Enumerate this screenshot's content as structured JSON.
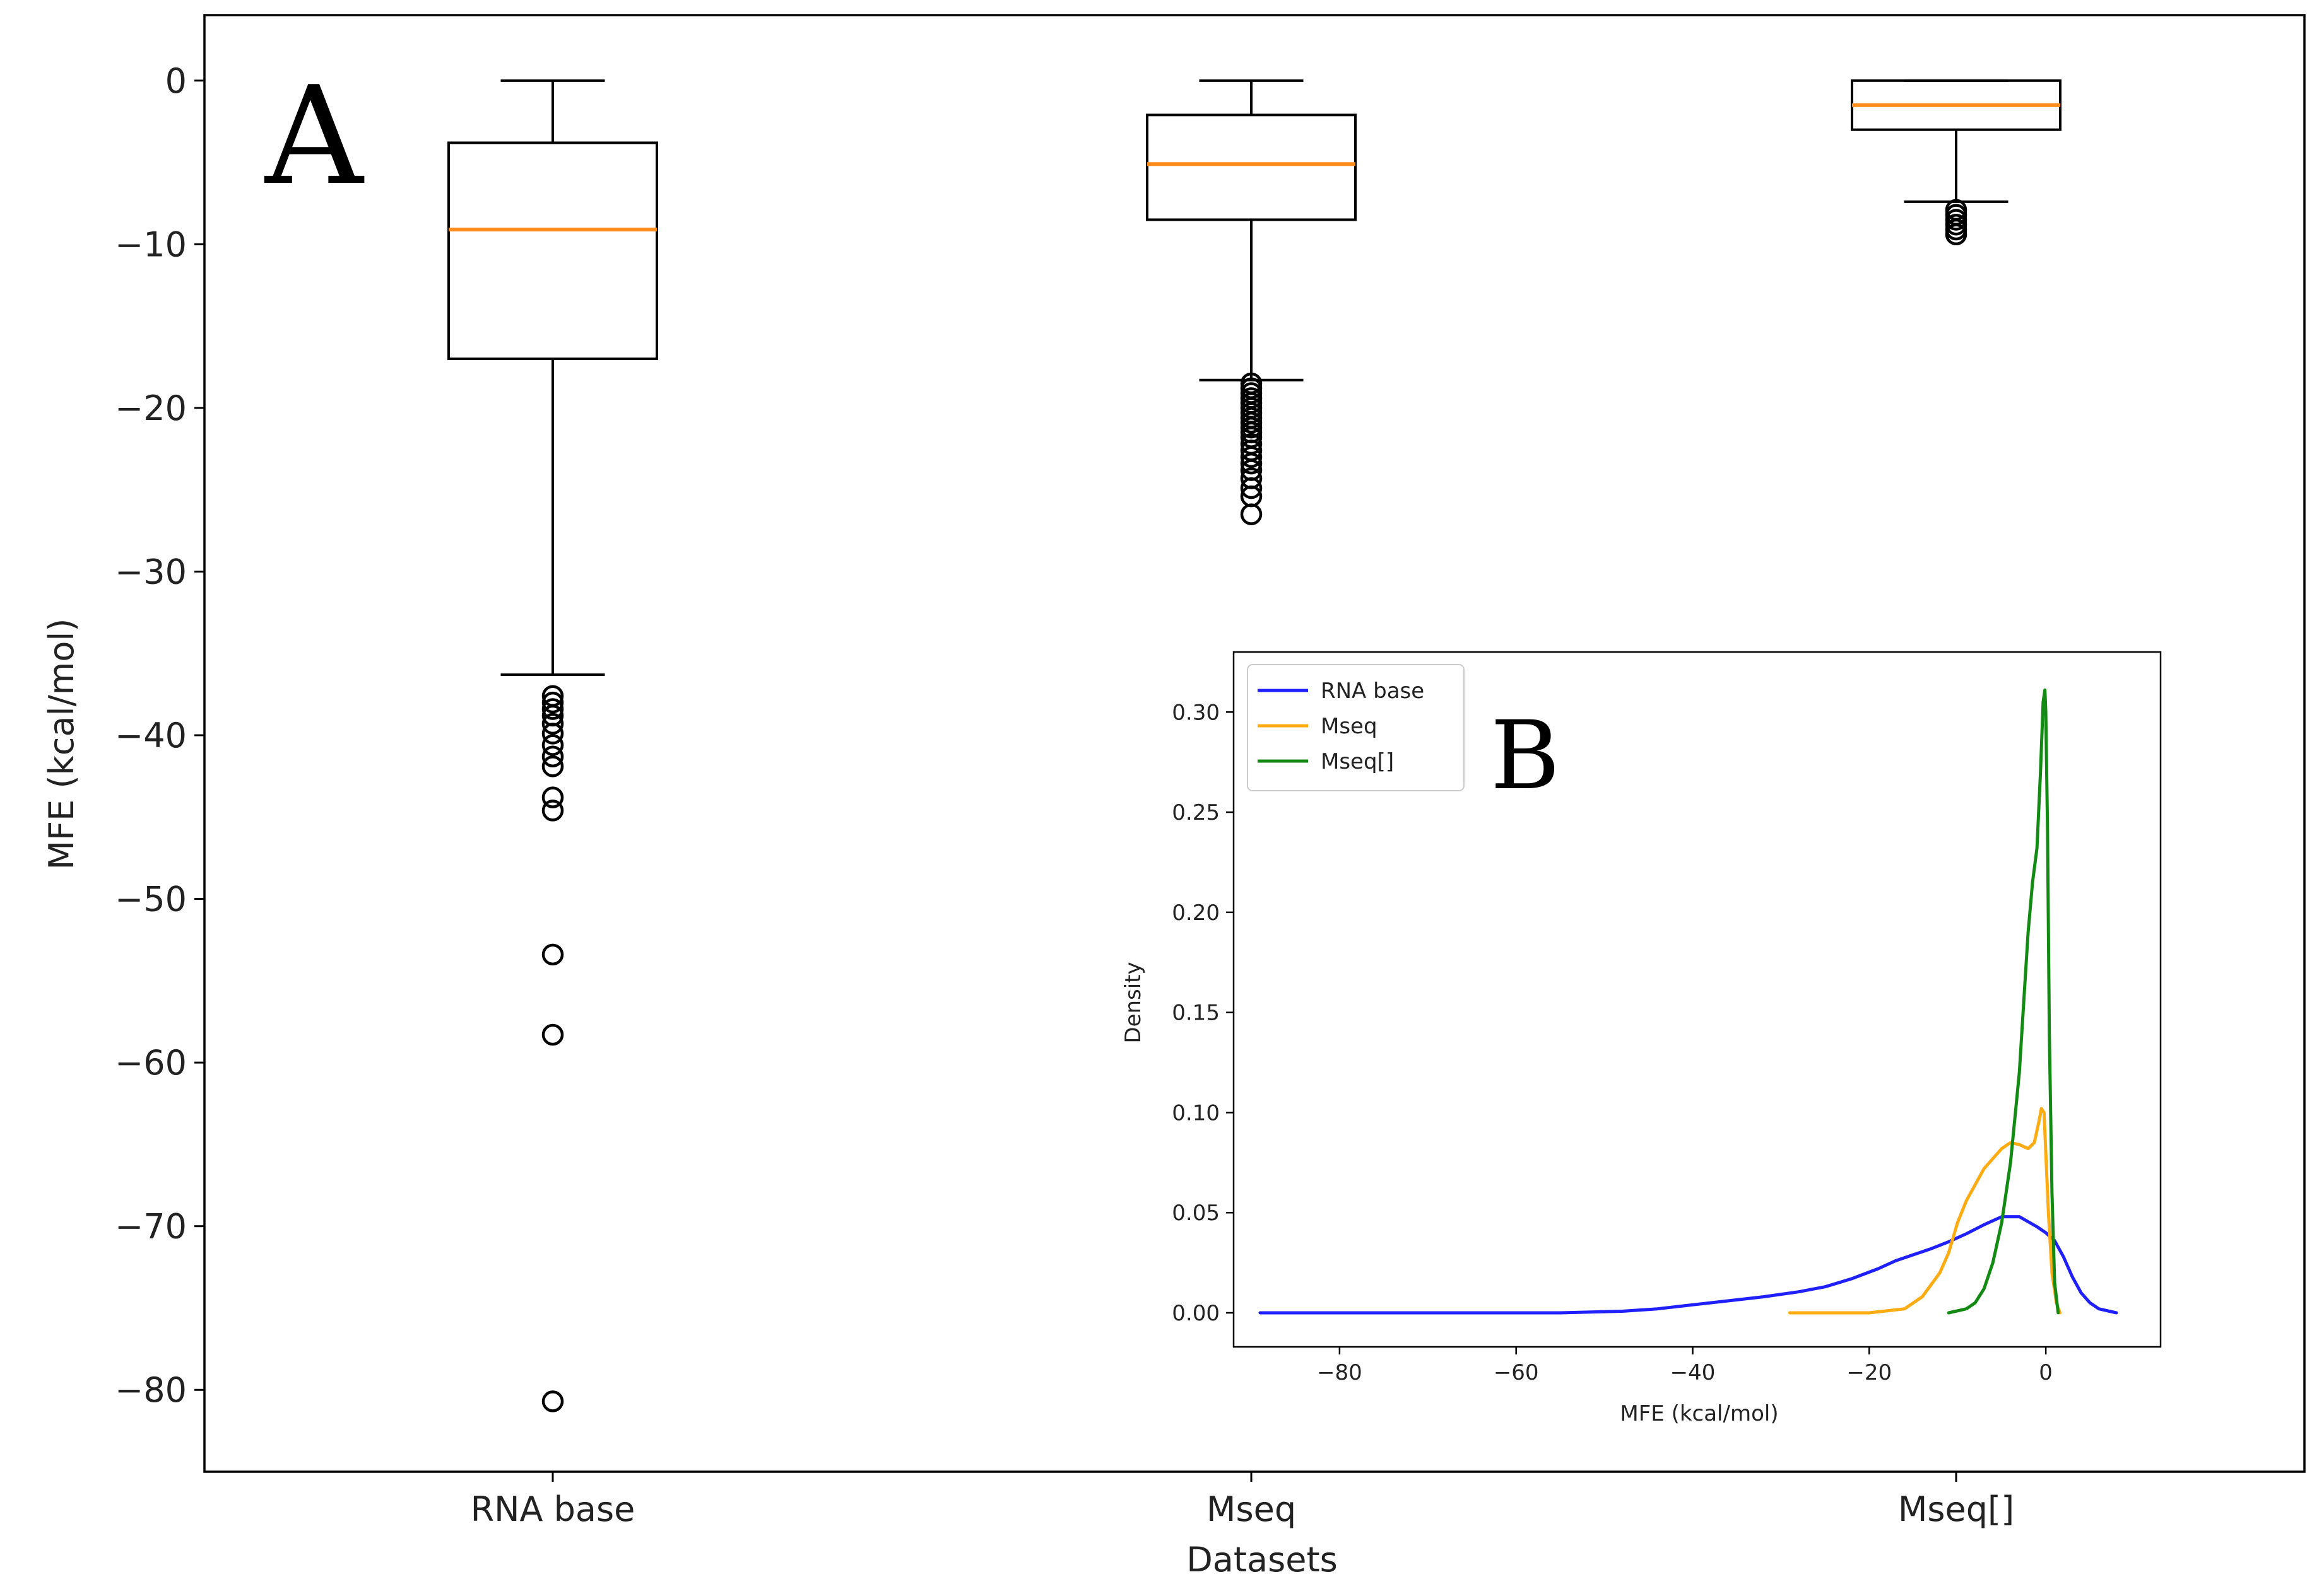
{
  "chart_data": [
    {
      "panel_label": "A",
      "type": "box",
      "xlabel": "Datasets",
      "ylabel": "MFE (kcal/mol)",
      "ylim": [
        -85,
        4
      ],
      "yticks": [
        0,
        -10,
        -20,
        -30,
        -40,
        -50,
        -60,
        -70,
        -80
      ],
      "ytick_labels": [
        "0",
        "−10",
        "−20",
        "−30",
        "−40",
        "−50",
        "−60",
        "−70",
        "−80"
      ],
      "categories": [
        "RNA base",
        "Mseq",
        "Mseq[]"
      ],
      "boxes": [
        {
          "name": "RNA base",
          "whisker_high": 0,
          "q3": -3.8,
          "median": -9.1,
          "q1": -17.0,
          "whisker_low": -36.3,
          "outliers": [
            -37.6,
            -38.0,
            -38.4,
            -38.8,
            -39.3,
            -39.9,
            -40.6,
            -41.3,
            -41.9,
            -43.8,
            -44.6,
            -53.4,
            -58.3,
            -80.7
          ]
        },
        {
          "name": "Mseq",
          "whisker_high": 0,
          "q3": -2.1,
          "median": -5.1,
          "q1": -8.5,
          "whisker_low": -18.3,
          "outliers": [
            -18.5,
            -18.8,
            -19.1,
            -19.4,
            -19.7,
            -20.0,
            -20.3,
            -20.6,
            -20.9,
            -21.2,
            -21.5,
            -21.8,
            -22.2,
            -22.6,
            -23.0,
            -23.4,
            -23.8,
            -24.3,
            -24.9,
            -25.4,
            -26.5
          ]
        },
        {
          "name": "Mseq[]",
          "whisker_high": 0,
          "q3": 0,
          "median": -1.5,
          "q1": -3.0,
          "whisker_low": -7.4,
          "outliers": [
            -7.9,
            -8.2,
            -8.5,
            -8.8,
            -9.1,
            -9.4
          ]
        }
      ]
    },
    {
      "panel_label": "B",
      "type": "line",
      "xlabel": "MFE (kcal/mol)",
      "ylabel": "Density",
      "xlim": [
        -92,
        13
      ],
      "ylim": [
        -0.017,
        0.33
      ],
      "xticks": [
        -80,
        -60,
        -40,
        -20,
        0
      ],
      "xtick_labels": [
        "−80",
        "−60",
        "−40",
        "−20",
        "0"
      ],
      "yticks": [
        0.0,
        0.05,
        0.1,
        0.15,
        0.2,
        0.25,
        0.3
      ],
      "ytick_labels": [
        "0.00",
        "0.05",
        "0.10",
        "0.15",
        "0.20",
        "0.25",
        "0.30"
      ],
      "legend_position": "top-left",
      "series": [
        {
          "name": "RNA base",
          "color": "#1f1fff",
          "x": [
            -89,
            -70,
            -55,
            -48,
            -44,
            -40,
            -36,
            -32,
            -28,
            -25,
            -22,
            -19,
            -17,
            -15,
            -13,
            -11,
            -9,
            -7,
            -5,
            -3,
            -1,
            0,
            1,
            2,
            3,
            4,
            5,
            6,
            8
          ],
          "y": [
            0,
            0,
            0,
            0.0008,
            0.002,
            0.004,
            0.006,
            0.008,
            0.0105,
            0.013,
            0.017,
            0.022,
            0.026,
            0.029,
            0.032,
            0.0355,
            0.0395,
            0.044,
            0.048,
            0.048,
            0.043,
            0.04,
            0.036,
            0.028,
            0.018,
            0.01,
            0.005,
            0.002,
            0
          ]
        },
        {
          "name": "Mseq",
          "color": "#ffab12",
          "x": [
            -29,
            -20,
            -16,
            -14,
            -12,
            -11,
            -10,
            -9,
            -8,
            -7,
            -6,
            -5,
            -4,
            -3,
            -2,
            -1.3,
            -0.8,
            -0.5,
            -0.2,
            0,
            0.3,
            0.7,
            1.2,
            1.6
          ],
          "y": [
            0,
            0,
            0.002,
            0.008,
            0.02,
            0.03,
            0.045,
            0.056,
            0.064,
            0.072,
            0.077,
            0.082,
            0.085,
            0.084,
            0.082,
            0.085,
            0.095,
            0.102,
            0.1,
            0.08,
            0.05,
            0.02,
            0.005,
            0
          ]
        },
        {
          "name": "Mseq[]",
          "color": "#138a13",
          "x": [
            -11,
            -9,
            -8,
            -7,
            -6,
            -5,
            -4,
            -3,
            -2.5,
            -2,
            -1.5,
            -1,
            -0.6,
            -0.3,
            -0.1,
            0,
            0.2,
            0.4,
            0.7,
            1,
            1.4
          ],
          "y": [
            0,
            0.002,
            0.005,
            0.012,
            0.025,
            0.045,
            0.075,
            0.12,
            0.155,
            0.19,
            0.215,
            0.232,
            0.27,
            0.305,
            0.311,
            0.3,
            0.24,
            0.14,
            0.06,
            0.015,
            0
          ]
        }
      ]
    }
  ]
}
